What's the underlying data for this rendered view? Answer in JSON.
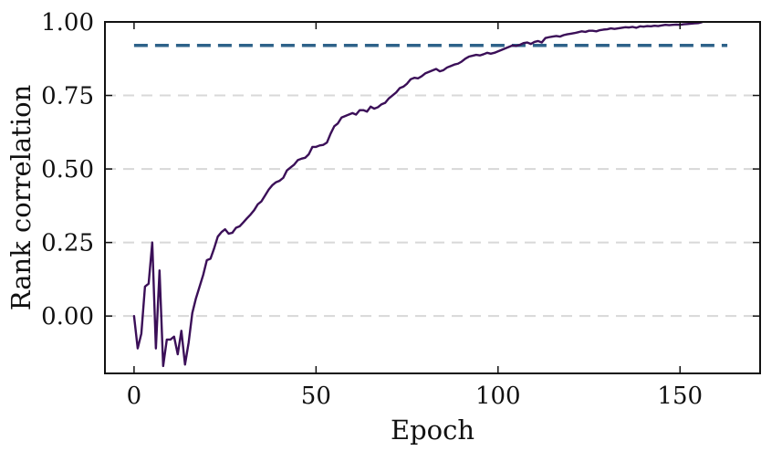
{
  "chart_data": {
    "type": "line",
    "title": "",
    "xlabel": "Epoch",
    "ylabel": "Rank correlation",
    "xlim": [
      -8,
      172
    ],
    "ylim": [
      -0.195,
      1.0
    ],
    "x_ticks": [
      0,
      50,
      100,
      150
    ],
    "x_tick_labels": [
      "0",
      "50",
      "100",
      "150"
    ],
    "y_ticks": [
      0.0,
      0.25,
      0.5,
      0.75,
      1.0
    ],
    "y_tick_labels": [
      "0.00",
      "0.25",
      "0.50",
      "0.75",
      "1.00"
    ],
    "grid": "y-dashed",
    "legend": "none",
    "colors": {
      "series_line": "#3b0f58",
      "reference_line": "#2e6289",
      "grid": "#d8d8d8",
      "axis": "#111111"
    },
    "reference_line": {
      "y": 0.92,
      "x_start": 0,
      "x_end": 163,
      "style": "dashed"
    },
    "series": [
      {
        "color": "#3b0f58",
        "x": [
          0,
          1,
          2,
          3,
          4,
          5,
          6,
          7,
          8,
          9,
          10,
          11,
          12,
          13,
          14,
          15,
          16,
          17,
          18,
          19,
          20,
          21,
          22,
          23,
          24,
          25,
          26,
          27,
          28,
          29,
          30,
          31,
          32,
          33,
          34,
          35,
          36,
          37,
          38,
          39,
          40,
          41,
          42,
          43,
          44,
          45,
          46,
          47,
          48,
          49,
          50,
          51,
          52,
          53,
          54,
          55,
          56,
          57,
          58,
          59,
          60,
          61,
          62,
          63,
          64,
          65,
          66,
          67,
          68,
          69,
          70,
          71,
          72,
          73,
          74,
          75,
          76,
          77,
          78,
          79,
          80,
          81,
          82,
          83,
          84,
          85,
          86,
          87,
          88,
          89,
          90,
          91,
          92,
          93,
          94,
          95,
          96,
          97,
          98,
          99,
          100,
          101,
          102,
          103,
          104,
          105,
          106,
          107,
          108,
          109,
          110,
          111,
          112,
          113,
          114,
          115,
          116,
          117,
          118,
          119,
          120,
          121,
          122,
          123,
          124,
          125,
          126,
          127,
          128,
          129,
          130,
          131,
          132,
          133,
          134,
          135,
          136,
          137,
          138,
          139,
          140,
          141,
          142,
          143,
          144,
          145,
          146,
          147,
          148,
          149,
          150,
          151,
          152,
          153,
          154,
          155,
          156
        ],
        "y": [
          0.0,
          -0.11,
          -0.06,
          0.1,
          0.11,
          0.25,
          -0.11,
          0.155,
          -0.17,
          -0.08,
          -0.08,
          -0.07,
          -0.13,
          -0.05,
          -0.165,
          -0.09,
          0.01,
          0.06,
          0.1,
          0.14,
          0.19,
          0.195,
          0.23,
          0.27,
          0.285,
          0.295,
          0.28,
          0.283,
          0.3,
          0.305,
          0.318,
          0.332,
          0.345,
          0.36,
          0.38,
          0.39,
          0.41,
          0.43,
          0.445,
          0.455,
          0.46,
          0.47,
          0.495,
          0.505,
          0.515,
          0.53,
          0.535,
          0.538,
          0.55,
          0.575,
          0.575,
          0.58,
          0.582,
          0.59,
          0.62,
          0.645,
          0.655,
          0.675,
          0.68,
          0.685,
          0.69,
          0.685,
          0.7,
          0.7,
          0.695,
          0.712,
          0.705,
          0.71,
          0.72,
          0.725,
          0.74,
          0.75,
          0.76,
          0.775,
          0.78,
          0.79,
          0.805,
          0.81,
          0.808,
          0.815,
          0.825,
          0.83,
          0.835,
          0.84,
          0.832,
          0.836,
          0.845,
          0.85,
          0.855,
          0.858,
          0.865,
          0.875,
          0.882,
          0.885,
          0.888,
          0.886,
          0.89,
          0.895,
          0.892,
          0.895,
          0.9,
          0.905,
          0.91,
          0.915,
          0.92,
          0.918,
          0.922,
          0.928,
          0.93,
          0.925,
          0.932,
          0.935,
          0.93,
          0.945,
          0.948,
          0.95,
          0.952,
          0.95,
          0.955,
          0.958,
          0.96,
          0.962,
          0.965,
          0.968,
          0.966,
          0.97,
          0.97,
          0.968,
          0.972,
          0.974,
          0.975,
          0.978,
          0.976,
          0.978,
          0.98,
          0.982,
          0.981,
          0.983,
          0.98,
          0.985,
          0.984,
          0.986,
          0.985,
          0.987,
          0.986,
          0.988,
          0.99,
          0.989,
          0.99,
          0.991,
          0.99,
          0.992,
          0.993,
          0.994,
          0.995,
          0.996,
          0.999
        ]
      }
    ]
  }
}
